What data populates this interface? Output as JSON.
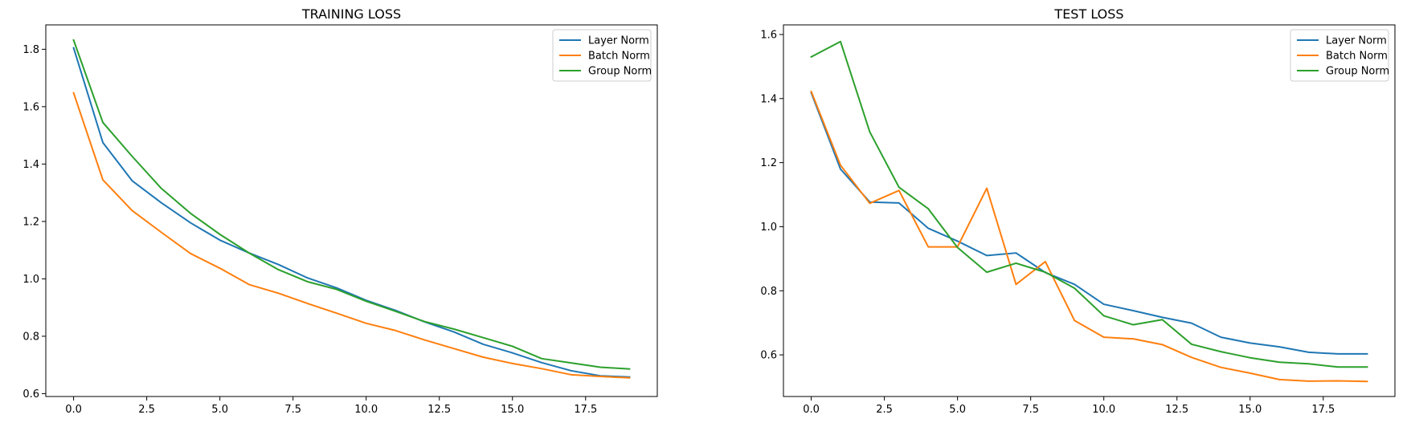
{
  "chart_data": [
    {
      "type": "line",
      "title": "TRAINING LOSS",
      "xlabel": "",
      "ylabel": "",
      "xlim": [
        -0.95,
        19.95
      ],
      "ylim": [
        0.59,
        1.885
      ],
      "xticks": [
        0.0,
        2.5,
        5.0,
        7.5,
        10.0,
        12.5,
        15.0,
        17.5
      ],
      "xtick_labels": [
        "0.0",
        "2.5",
        "5.0",
        "7.5",
        "10.0",
        "12.5",
        "15.0",
        "17.5"
      ],
      "yticks": [
        0.6,
        0.8,
        1.0,
        1.2,
        1.4,
        1.6,
        1.8
      ],
      "ytick_labels": [
        "0.6",
        "0.8",
        "1.0",
        "1.2",
        "1.4",
        "1.6",
        "1.8"
      ],
      "grid": false,
      "legend_position": "top-right",
      "x": [
        0,
        1,
        2,
        3,
        4,
        5,
        6,
        7,
        8,
        9,
        10,
        11,
        12,
        13,
        14,
        15,
        16,
        17,
        18,
        19
      ],
      "series": [
        {
          "name": "Layer Norm",
          "color": "#1f77b4",
          "values": [
            1.805,
            1.475,
            1.342,
            1.265,
            1.195,
            1.135,
            1.09,
            1.05,
            1.003,
            0.968,
            0.925,
            0.89,
            0.85,
            0.815,
            0.772,
            0.742,
            0.708,
            0.68,
            0.662,
            0.658
          ]
        },
        {
          "name": "Batch Norm",
          "color": "#ff7f0e",
          "values": [
            1.648,
            1.345,
            1.238,
            1.162,
            1.088,
            1.037,
            0.98,
            0.95,
            0.914,
            0.88,
            0.845,
            0.82,
            0.787,
            0.757,
            0.727,
            0.705,
            0.687,
            0.666,
            0.66,
            0.655
          ]
        },
        {
          "name": "Group Norm",
          "color": "#2ca02c",
          "values": [
            1.832,
            1.545,
            1.427,
            1.315,
            1.228,
            1.155,
            1.09,
            1.032,
            0.99,
            0.963,
            0.922,
            0.887,
            0.851,
            0.825,
            0.795,
            0.765,
            0.722,
            0.707,
            0.692,
            0.686
          ]
        }
      ]
    },
    {
      "type": "line",
      "title": "TEST LOSS",
      "xlabel": "",
      "ylabel": "",
      "xlim": [
        -0.95,
        19.95
      ],
      "ylim": [
        0.47,
        1.63
      ],
      "xticks": [
        0.0,
        2.5,
        5.0,
        7.5,
        10.0,
        12.5,
        15.0,
        17.5
      ],
      "xtick_labels": [
        "0.0",
        "2.5",
        "5.0",
        "7.5",
        "10.0",
        "12.5",
        "15.0",
        "17.5"
      ],
      "yticks": [
        0.6,
        0.8,
        1.0,
        1.2,
        1.4,
        1.6
      ],
      "ytick_labels": [
        "0.6",
        "0.8",
        "1.0",
        "1.2",
        "1.4",
        "1.6"
      ],
      "grid": false,
      "legend_position": "top-right",
      "x": [
        0,
        1,
        2,
        3,
        4,
        5,
        6,
        7,
        8,
        9,
        10,
        11,
        12,
        13,
        14,
        15,
        16,
        17,
        18,
        19
      ],
      "series": [
        {
          "name": "Layer Norm",
          "color": "#1f77b4",
          "values": [
            1.418,
            1.18,
            1.077,
            1.074,
            0.995,
            0.955,
            0.91,
            0.918,
            0.857,
            0.82,
            0.758,
            0.738,
            0.717,
            0.699,
            0.655,
            0.637,
            0.625,
            0.608,
            0.603,
            0.603
          ]
        },
        {
          "name": "Batch Norm",
          "color": "#ff7f0e",
          "values": [
            1.422,
            1.192,
            1.073,
            1.113,
            0.937,
            0.937,
            1.12,
            0.82,
            0.891,
            0.707,
            0.655,
            0.65,
            0.632,
            0.592,
            0.561,
            0.543,
            0.523,
            0.518,
            0.519,
            0.517
          ]
        },
        {
          "name": "Group Norm",
          "color": "#2ca02c",
          "values": [
            1.53,
            1.578,
            1.296,
            1.123,
            1.056,
            0.935,
            0.858,
            0.886,
            0.858,
            0.808,
            0.722,
            0.694,
            0.71,
            0.633,
            0.61,
            0.591,
            0.577,
            0.572,
            0.562,
            0.562
          ]
        }
      ]
    }
  ]
}
